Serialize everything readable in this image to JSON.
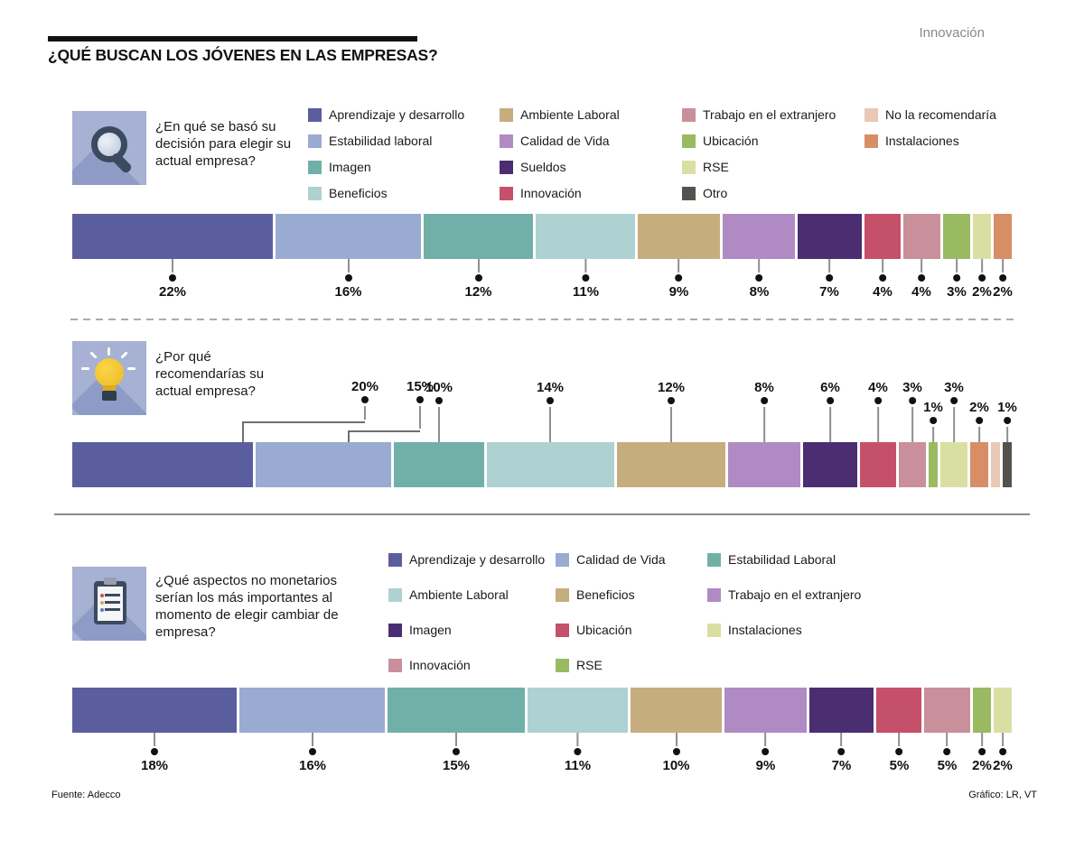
{
  "page": {
    "title": "¿QUÉ BUSCAN LOS JÓVENES EN LAS EMPRESAS?",
    "corner_tag": "Innovación",
    "source": "Fuente: Adecco",
    "credit": "Gráfico: LR, VT"
  },
  "palette": {
    "indigo": "#5b5e9e",
    "periwinkle": "#9aabd2",
    "teal": "#71b0a9",
    "lightteal": "#aed1d1",
    "tan": "#c6ad7e",
    "lilac": "#b08bc3",
    "plum": "#4a2e71",
    "crimson": "#c5506a",
    "rose": "#c98f9b",
    "olive": "#9aba62",
    "palegreen": "#d9dfa3",
    "terracotta": "#d78e66",
    "peach": "#e9c9b4",
    "charcoal": "#55514c"
  },
  "chart_data": [
    {
      "type": "bar",
      "orientation": "horizontal-stacked",
      "question": "¿En qué se basó su decisión para elegir su actual empresa?",
      "icon": "magnifier-icon",
      "label_position": "below",
      "legend_columns": [
        [
          {
            "label": "Aprendizaje y desarrollo",
            "color": "indigo"
          },
          {
            "label": "Estabilidad laboral",
            "color": "periwinkle"
          },
          {
            "label": "Imagen",
            "color": "teal"
          },
          {
            "label": "Beneficios",
            "color": "lightteal"
          }
        ],
        [
          {
            "label": "Ambiente Laboral",
            "color": "tan"
          },
          {
            "label": "Calidad de Vida",
            "color": "lilac"
          },
          {
            "label": "Sueldos",
            "color": "plum"
          },
          {
            "label": "Innovación",
            "color": "crimson"
          }
        ],
        [
          {
            "label": "Trabajo en el extranjero",
            "color": "rose"
          },
          {
            "label": "Ubicación",
            "color": "olive"
          },
          {
            "label": "RSE",
            "color": "palegreen"
          },
          {
            "label": "Otro",
            "color": "charcoal"
          }
        ],
        [
          {
            "label": "No la recomendaría",
            "color": "peach"
          },
          {
            "label": "Instalaciones",
            "color": "terracotta"
          }
        ]
      ],
      "segments": [
        {
          "name": "Aprendizaje y desarrollo",
          "value": 22,
          "label": "22%",
          "color": "indigo"
        },
        {
          "name": "Estabilidad laboral",
          "value": 16,
          "label": "16%",
          "color": "periwinkle"
        },
        {
          "name": "Imagen",
          "value": 12,
          "label": "12%",
          "color": "teal"
        },
        {
          "name": "Beneficios",
          "value": 11,
          "label": "11%",
          "color": "lightteal"
        },
        {
          "name": "Ambiente Laboral",
          "value": 9,
          "label": "9%",
          "color": "tan"
        },
        {
          "name": "Calidad de Vida",
          "value": 8,
          "label": "8%",
          "color": "lilac"
        },
        {
          "name": "Sueldos",
          "value": 7,
          "label": "7%",
          "color": "plum"
        },
        {
          "name": "Innovación",
          "value": 4,
          "label": "4%",
          "color": "crimson"
        },
        {
          "name": "Trabajo en el extranjero",
          "value": 4,
          "label": "4%",
          "color": "rose"
        },
        {
          "name": "Ubicación",
          "value": 3,
          "label": "3%",
          "color": "olive"
        },
        {
          "name": "RSE",
          "value": 2,
          "label": "2%",
          "color": "palegreen"
        },
        {
          "name": "Instalaciones",
          "value": 2,
          "label": "2%",
          "color": "terracotta"
        }
      ]
    },
    {
      "type": "bar",
      "orientation": "horizontal-stacked",
      "question": "¿Por qué recomendarías su actual empresa?",
      "icon": "lightbulb-icon",
      "label_position": "above",
      "legend_columns": [],
      "segments": [
        {
          "name": "Aprendizaje y desarrollo",
          "value": 20,
          "label": "20%",
          "color": "indigo"
        },
        {
          "name": "Estabilidad laboral",
          "value": 15,
          "label": "15%",
          "color": "periwinkle"
        },
        {
          "name": "Imagen",
          "value": 10,
          "label": "10%",
          "color": "teal"
        },
        {
          "name": "Beneficios",
          "value": 14,
          "label": "14%",
          "color": "lightteal"
        },
        {
          "name": "Ambiente Laboral",
          "value": 12,
          "label": "12%",
          "color": "tan"
        },
        {
          "name": "Calidad de Vida",
          "value": 8,
          "label": "8%",
          "color": "lilac"
        },
        {
          "name": "Sueldos",
          "value": 6,
          "label": "6%",
          "color": "plum"
        },
        {
          "name": "Innovación",
          "value": 4,
          "label": "4%",
          "color": "crimson"
        },
        {
          "name": "Trabajo en el extranjero",
          "value": 3,
          "label": "3%",
          "color": "rose"
        },
        {
          "name": "Ubicación",
          "value": 1,
          "label": "1%",
          "color": "olive"
        },
        {
          "name": "RSE",
          "value": 3,
          "label": "3%",
          "color": "palegreen"
        },
        {
          "name": "Instalaciones",
          "value": 2,
          "label": "2%",
          "color": "terracotta"
        },
        {
          "name": "No la recomendaría",
          "value": 1,
          "label": "",
          "color": "peach"
        },
        {
          "name": "Otro",
          "value": 1,
          "label": "1%",
          "color": "charcoal"
        }
      ]
    },
    {
      "type": "bar",
      "orientation": "horizontal-stacked",
      "question": "¿Qué aspectos no monetarios serían los más importantes al momento de elegir cambiar de empresa?",
      "icon": "clipboard-icon",
      "label_position": "below",
      "legend_columns": [
        [
          {
            "label": "Aprendizaje y desarrollo",
            "color": "indigo"
          },
          {
            "label": "Ambiente Laboral",
            "color": "lightteal"
          },
          {
            "label": "Imagen",
            "color": "plum"
          },
          {
            "label": "Innovación",
            "color": "rose"
          }
        ],
        [
          {
            "label": "Calidad de Vida",
            "color": "periwinkle"
          },
          {
            "label": "Beneficios",
            "color": "tan"
          },
          {
            "label": "Ubicación",
            "color": "crimson"
          },
          {
            "label": "RSE",
            "color": "olive"
          }
        ],
        [
          {
            "label": "Estabilidad Laboral",
            "color": "teal"
          },
          {
            "label": "Trabajo en el extranjero",
            "color": "lilac"
          },
          {
            "label": "Instalaciones",
            "color": "palegreen"
          }
        ]
      ],
      "segments": [
        {
          "name": "Aprendizaje y desarrollo",
          "value": 18,
          "label": "18%",
          "color": "indigo"
        },
        {
          "name": "Calidad de Vida",
          "value": 16,
          "label": "16%",
          "color": "periwinkle"
        },
        {
          "name": "Estabilidad Laboral",
          "value": 15,
          "label": "15%",
          "color": "teal"
        },
        {
          "name": "Ambiente Laboral",
          "value": 11,
          "label": "11%",
          "color": "lightteal"
        },
        {
          "name": "Beneficios",
          "value": 10,
          "label": "10%",
          "color": "tan"
        },
        {
          "name": "Trabajo en el extranjero",
          "value": 9,
          "label": "9%",
          "color": "lilac"
        },
        {
          "name": "Imagen",
          "value": 7,
          "label": "7%",
          "color": "plum"
        },
        {
          "name": "Ubicación",
          "value": 5,
          "label": "5%",
          "color": "crimson"
        },
        {
          "name": "Innovación",
          "value": 5,
          "label": "5%",
          "color": "rose"
        },
        {
          "name": "RSE",
          "value": 2,
          "label": "2%",
          "color": "olive"
        },
        {
          "name": "Instalaciones",
          "value": 2,
          "label": "2%",
          "color": "palegreen"
        }
      ]
    }
  ]
}
